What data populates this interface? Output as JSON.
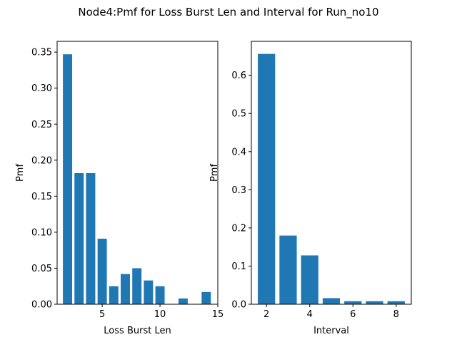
{
  "figure": {
    "title": "Node4:Pmf for Loss Burst Len and Interval for Run_no10",
    "bar_color": "#1f77b4"
  },
  "chart_data": [
    {
      "type": "bar",
      "title": "",
      "xlabel": "Loss Burst Len",
      "ylabel": "Pmf",
      "x": [
        2,
        3,
        4,
        5,
        6,
        7,
        8,
        9,
        10,
        12,
        14
      ],
      "values": [
        0.347,
        0.182,
        0.182,
        0.091,
        0.025,
        0.042,
        0.05,
        0.033,
        0.025,
        0.008,
        0.017
      ],
      "bar_width": 0.8,
      "xlim": [
        1.1,
        15.0
      ],
      "ylim": [
        0,
        0.365
      ],
      "xticks": [
        5,
        10,
        15
      ],
      "yticks": [
        0.0,
        0.05,
        0.1,
        0.15,
        0.2,
        0.25,
        0.3,
        0.35
      ],
      "xtick_labels": [
        "5",
        "10",
        "15"
      ],
      "ytick_labels": [
        "0.00",
        "0.05",
        "0.10",
        "0.15",
        "0.20",
        "0.25",
        "0.30",
        "0.35"
      ],
      "grid": false,
      "legend": "none"
    },
    {
      "type": "bar",
      "title": "",
      "xlabel": "Interval",
      "ylabel": "Pmf",
      "x": [
        2,
        3,
        4,
        5,
        6,
        7,
        8
      ],
      "values": [
        0.656,
        0.18,
        0.128,
        0.016,
        0.008,
        0.008,
        0.008
      ],
      "bar_width": 0.8,
      "xlim": [
        1.3,
        8.7
      ],
      "ylim": [
        0,
        0.689
      ],
      "xticks": [
        2,
        4,
        6,
        8
      ],
      "yticks": [
        0.0,
        0.1,
        0.2,
        0.3,
        0.4,
        0.5,
        0.6
      ],
      "xtick_labels": [
        "2",
        "4",
        "6",
        "8"
      ],
      "ytick_labels": [
        "0.0",
        "0.1",
        "0.2",
        "0.3",
        "0.4",
        "0.5",
        "0.6"
      ],
      "grid": false,
      "legend": "none"
    }
  ]
}
